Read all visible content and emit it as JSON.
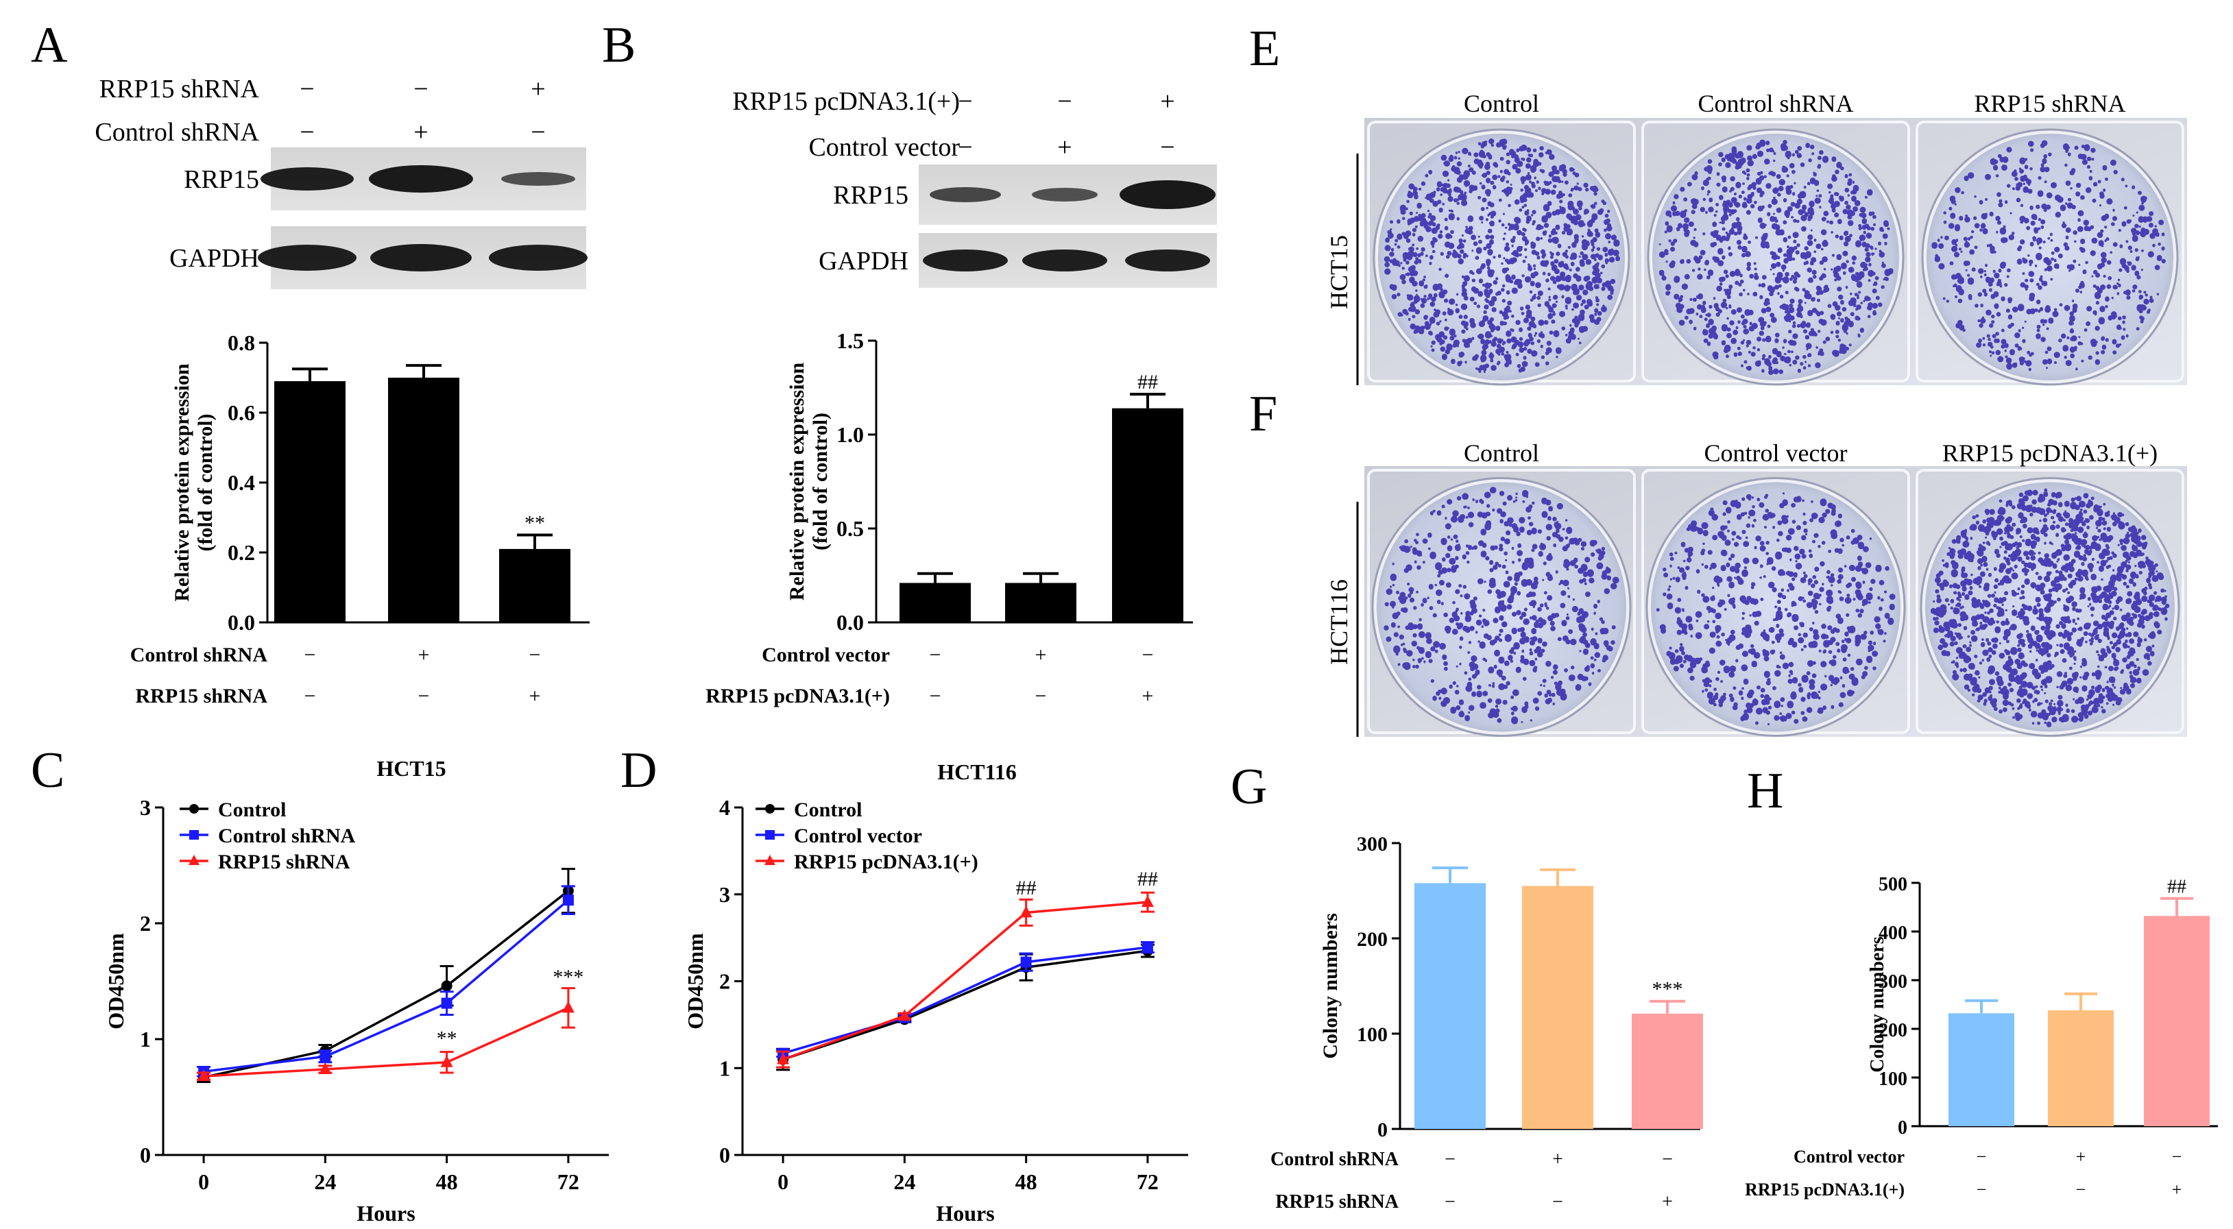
{
  "panel_labels": {
    "A": "A",
    "B": "B",
    "C": "C",
    "D": "D",
    "E": "E",
    "F": "F",
    "G": "G",
    "H": "H"
  },
  "signs": {
    "minus": "−",
    "plus": "+"
  },
  "panel_a": {
    "rows": [
      {
        "label": "RRP15 shRNA",
        "signs": [
          "−",
          "−",
          "+"
        ]
      },
      {
        "label": "Control shRNA",
        "signs": [
          "−",
          "+",
          "−"
        ]
      }
    ],
    "blots": [
      "RRP15",
      "GAPDH"
    ]
  },
  "panel_b": {
    "rows": [
      {
        "label": "RRP15 pcDNA3.1(+)",
        "signs": [
          "−",
          "−",
          "+"
        ]
      },
      {
        "label": "Control vector",
        "signs": [
          "−",
          "+",
          "−"
        ]
      }
    ],
    "blots": [
      "RRP15",
      "GAPDH"
    ]
  },
  "panel_e": {
    "row_label": "HCT15",
    "columns": [
      "Control",
      "Control shRNA",
      "RRP15 shRNA"
    ]
  },
  "panel_f": {
    "row_label": "HCT116",
    "columns": [
      "Control",
      "Control vector",
      "RRP15 pcDNA3.1(+)"
    ]
  },
  "colors": {
    "black": "#000000",
    "blue": "#1a1aff",
    "red": "#ff1a1a",
    "bar_blue": "#80c3ff",
    "bar_orange": "#ffbf7f",
    "bar_pink": "#ff9ea0",
    "dish_bg": "#ccd4e6",
    "colony": "#3b2fae"
  },
  "chart_data": [
    {
      "id": "A_bar",
      "type": "bar",
      "categories": [
        "1",
        "2",
        "3"
      ],
      "values": [
        0.69,
        0.7,
        0.21
      ],
      "errors": [
        0.035,
        0.035,
        0.04
      ],
      "annotations": [
        "",
        "",
        "**"
      ],
      "title": "",
      "xlabel": "",
      "ylabel": [
        "Relative protein expression",
        "(fold of control)"
      ],
      "ylim": [
        0,
        0.8
      ],
      "yticks": [
        0.0,
        0.2,
        0.4,
        0.6,
        0.8
      ],
      "ytick_labels": [
        "0.0",
        "0.2",
        "0.4",
        "0.6",
        "0.8"
      ],
      "conditions": [
        {
          "label": "Control shRNA",
          "signs": [
            "−",
            "+",
            "−"
          ]
        },
        {
          "label": "RRP15 shRNA",
          "signs": [
            "−",
            "−",
            "+"
          ]
        }
      ]
    },
    {
      "id": "B_bar",
      "type": "bar",
      "categories": [
        "1",
        "2",
        "3"
      ],
      "values": [
        0.21,
        0.21,
        1.14
      ],
      "errors": [
        0.05,
        0.05,
        0.075
      ],
      "annotations": [
        "",
        "",
        "##"
      ],
      "title": "",
      "xlabel": "",
      "ylabel": [
        "Relative protein expression",
        "(fold of control)"
      ],
      "ylim": [
        0,
        1.5
      ],
      "yticks": [
        0.0,
        0.5,
        1.0,
        1.5
      ],
      "ytick_labels": [
        "0.0",
        "0.5",
        "1.0",
        "1.5"
      ],
      "conditions": [
        {
          "label": "Control vector",
          "signs": [
            "−",
            "+",
            "−"
          ]
        },
        {
          "label": "RRP15 pcDNA3.1(+)",
          "signs": [
            "−",
            "−",
            "+"
          ]
        }
      ]
    },
    {
      "id": "C_line",
      "type": "line",
      "title": "HCT15",
      "xlabel": "Hours",
      "ylabel": "OD450nm",
      "x": [
        0,
        24,
        48,
        72
      ],
      "xlim": [
        -8,
        80
      ],
      "ylim": [
        0,
        3
      ],
      "xticks": [
        0,
        24,
        48,
        72
      ],
      "yticks": [
        0,
        1,
        2,
        3
      ],
      "series": [
        {
          "name": "Control",
          "color": "#000000",
          "marker": "circle",
          "values": [
            0.67,
            0.9,
            1.46,
            2.28
          ],
          "errors": [
            0.04,
            0.05,
            0.17,
            0.19
          ]
        },
        {
          "name": "Control shRNA",
          "color": "#1a1aff",
          "marker": "square",
          "values": [
            0.72,
            0.85,
            1.31,
            2.2
          ],
          "errors": [
            0.04,
            0.05,
            0.1,
            0.12
          ]
        },
        {
          "name": "RRP15 shRNA",
          "color": "#ff1a1a",
          "marker": "triangle",
          "values": [
            0.68,
            0.74,
            0.8,
            1.27
          ],
          "errors": [
            0.03,
            0.03,
            0.09,
            0.17
          ]
        }
      ],
      "annotations": [
        {
          "x": 48,
          "y": 0.95,
          "text": "**"
        },
        {
          "x": 72,
          "y": 1.48,
          "text": "***"
        }
      ]
    },
    {
      "id": "D_line",
      "type": "line",
      "title": "HCT116",
      "xlabel": "Hours",
      "ylabel": "OD450nm",
      "x": [
        0,
        24,
        48,
        72
      ],
      "xlim": [
        -8,
        80
      ],
      "ylim": [
        0,
        4
      ],
      "xticks": [
        0,
        24,
        48,
        72
      ],
      "yticks": [
        0,
        1,
        2,
        3,
        4
      ],
      "series": [
        {
          "name": "Control",
          "color": "#000000",
          "marker": "circle",
          "values": [
            1.1,
            1.56,
            2.16,
            2.35
          ],
          "errors": [
            0.12,
            0.03,
            0.15,
            0.07
          ]
        },
        {
          "name": "Control vector",
          "color": "#1a1aff",
          "marker": "square",
          "values": [
            1.17,
            1.58,
            2.22,
            2.39
          ],
          "errors": [
            0.04,
            0.03,
            0.1,
            0.06
          ]
        },
        {
          "name": "RRP15 pcDNA3.1(+)",
          "color": "#ff1a1a",
          "marker": "triangle",
          "values": [
            1.1,
            1.6,
            2.79,
            2.91
          ],
          "errors": [
            0.09,
            0.03,
            0.15,
            0.11
          ]
        }
      ],
      "annotations": [
        {
          "x": 48,
          "y": 3.0,
          "text": "##"
        },
        {
          "x": 72,
          "y": 3.1,
          "text": "##"
        }
      ]
    },
    {
      "id": "G_bar",
      "type": "bar",
      "categories": [
        "1",
        "2",
        "3"
      ],
      "values": [
        258,
        255,
        121
      ],
      "errors": [
        16,
        17,
        13
      ],
      "annotations": [
        "",
        "",
        "***"
      ],
      "colors": [
        "#80c3ff",
        "#ffbf7f",
        "#ff9ea0"
      ],
      "title": "",
      "xlabel": "",
      "ylabel": "Colony numbers",
      "ylim": [
        0,
        300
      ],
      "yticks": [
        0,
        100,
        200,
        300
      ],
      "ytick_labels": [
        "0",
        "100",
        "200",
        "300"
      ],
      "conditions": [
        {
          "label": "Control shRNA",
          "signs": [
            "−",
            "+",
            "−"
          ]
        },
        {
          "label": "RRP15 shRNA",
          "signs": [
            "−",
            "−",
            "+"
          ]
        }
      ]
    },
    {
      "id": "H_bar",
      "type": "bar",
      "categories": [
        "1",
        "2",
        "3"
      ],
      "values": [
        232,
        238,
        432
      ],
      "errors": [
        26,
        34,
        36
      ],
      "annotations": [
        "",
        "",
        "##"
      ],
      "colors": [
        "#80c3ff",
        "#ffbf7f",
        "#ff9ea0"
      ],
      "title": "",
      "xlabel": "",
      "ylabel": "Colony numbers",
      "ylim": [
        0,
        500
      ],
      "yticks": [
        0,
        100,
        200,
        300,
        400,
        500
      ],
      "ytick_labels": [
        "0",
        "100",
        "200",
        "300",
        "400",
        "500"
      ],
      "conditions": [
        {
          "label": "Control vector",
          "signs": [
            "−",
            "+",
            "−"
          ]
        },
        {
          "label": "RRP15 pcDNA3.1(+)",
          "signs": [
            "−",
            "−",
            "+"
          ]
        }
      ]
    }
  ]
}
